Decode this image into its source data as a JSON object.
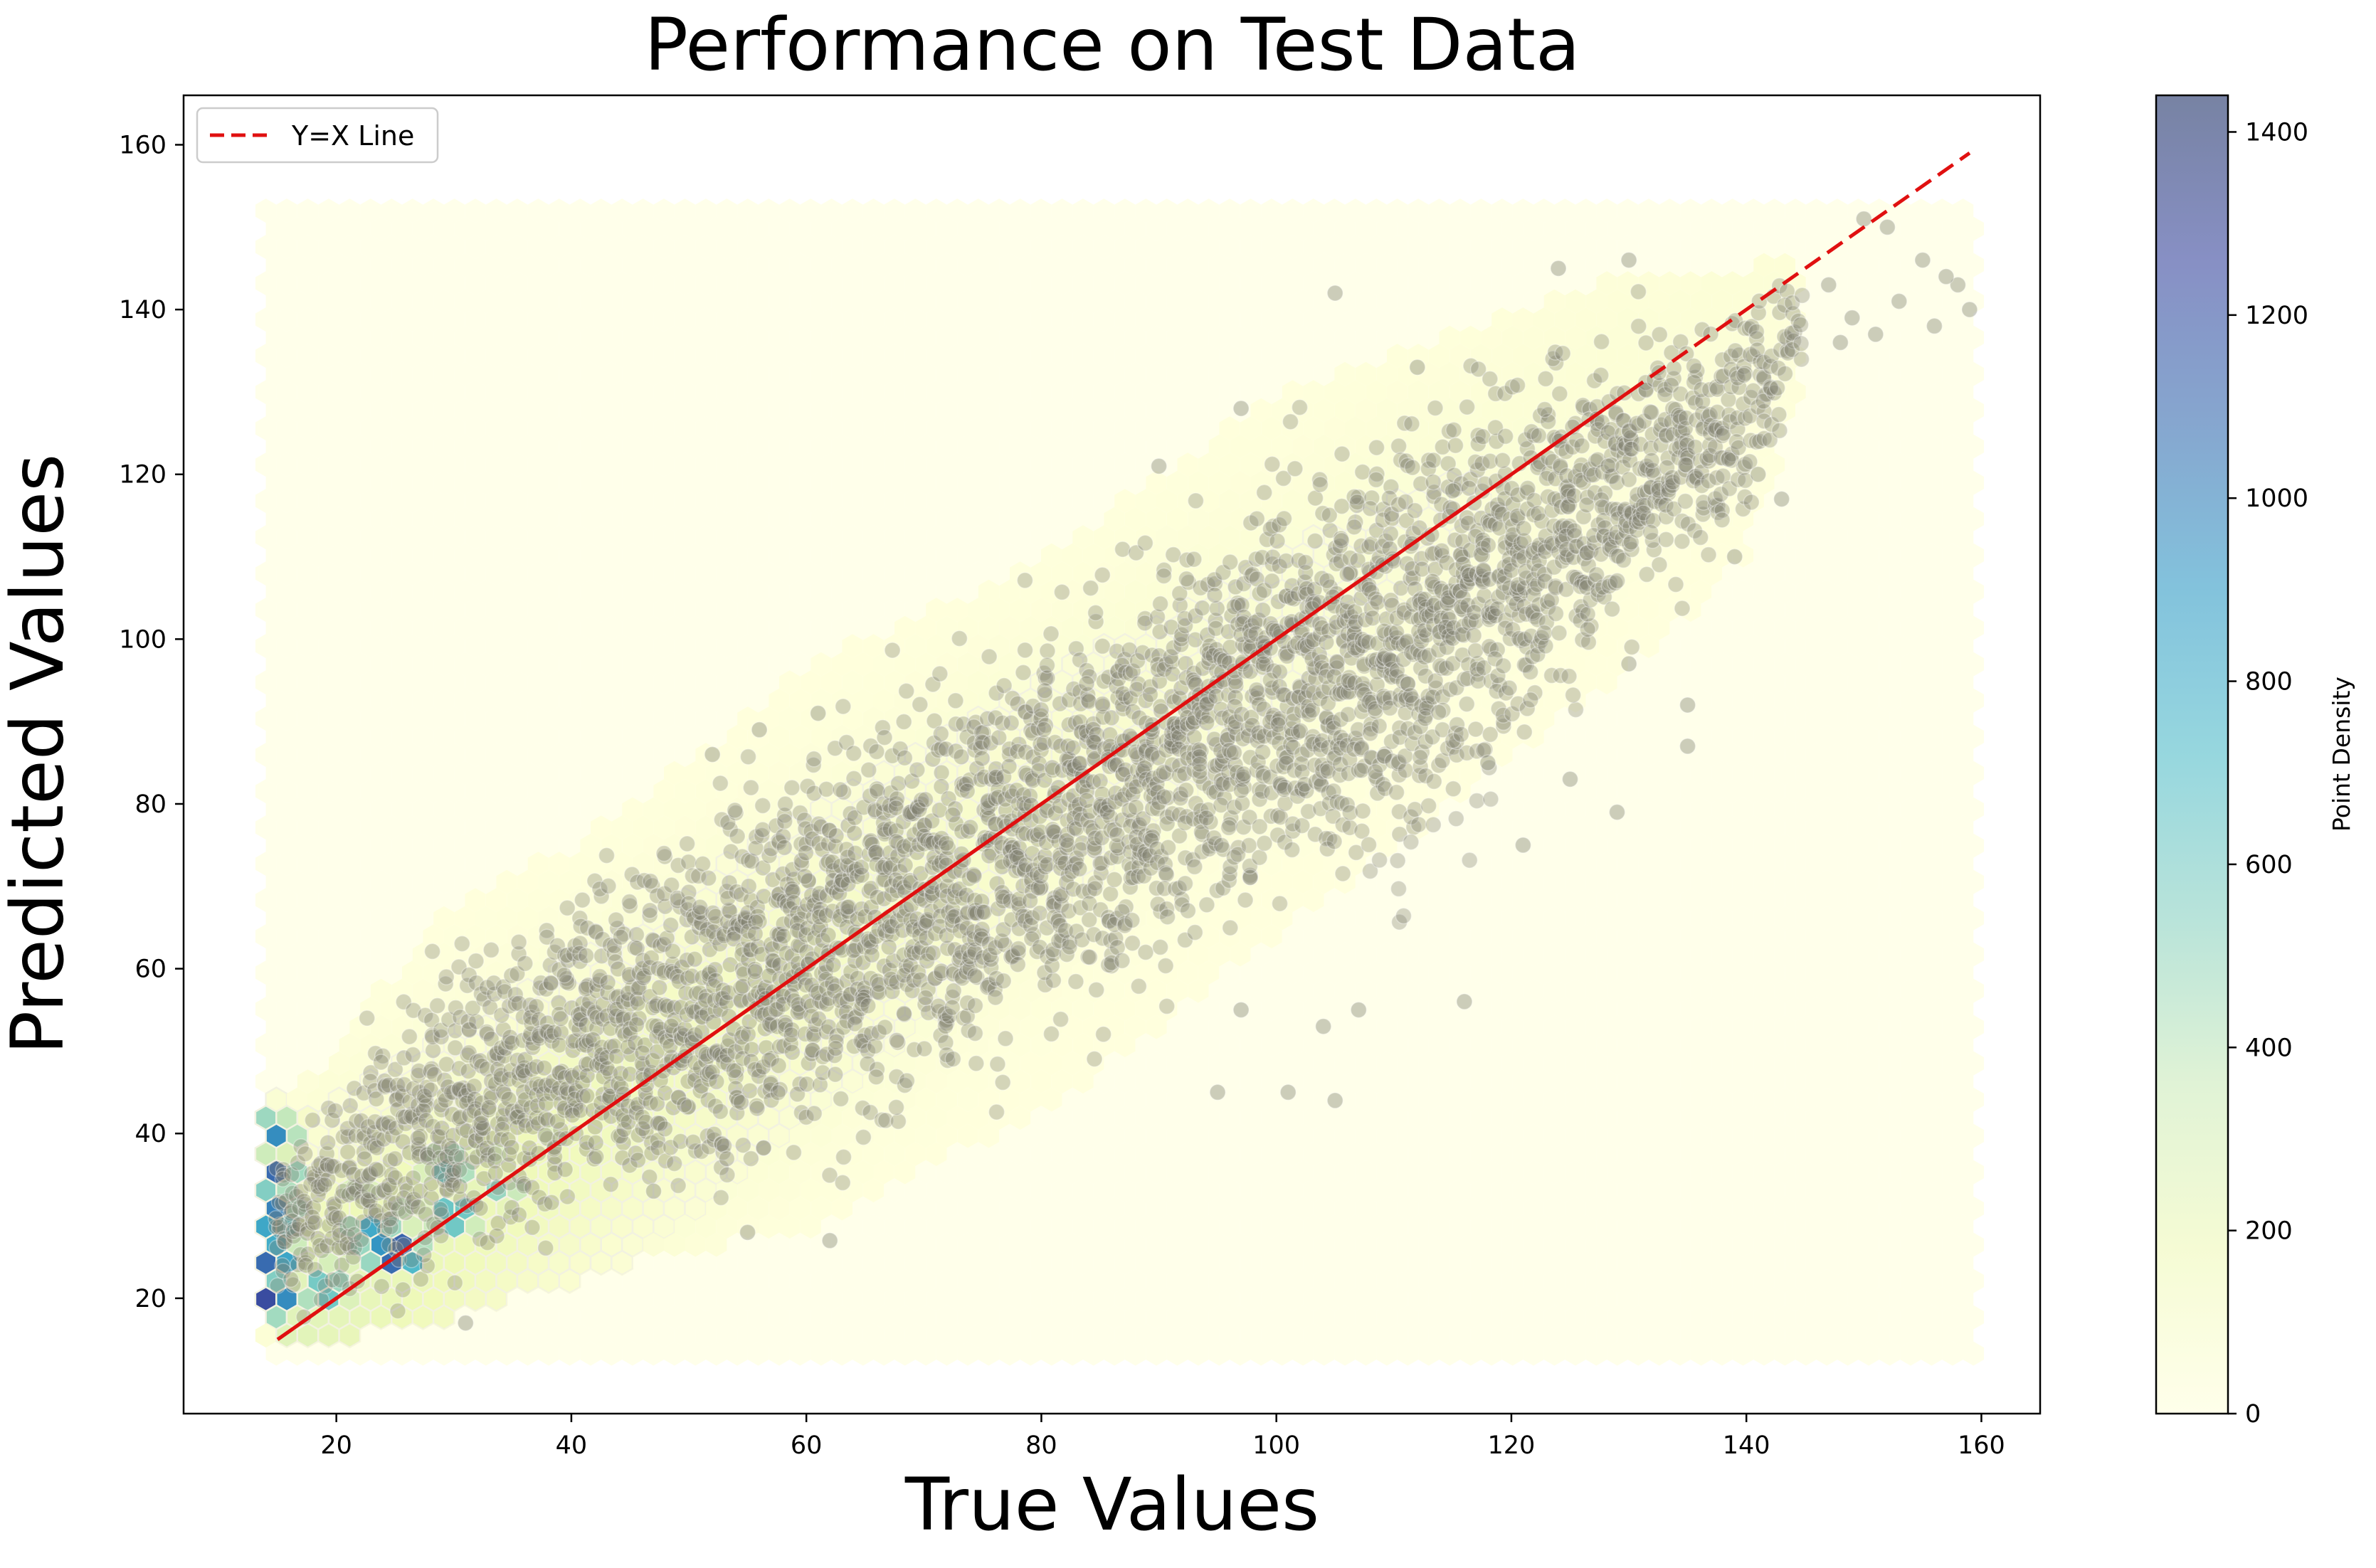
{
  "chart_data": {
    "type": "scatter",
    "subtype": "hexbin density with scatter overlay",
    "title": "Performance on Test Data",
    "xlabel": "True Values",
    "ylabel": "Predicted Values",
    "xlim": [
      7,
      165
    ],
    "ylim": [
      6,
      166
    ],
    "xticks": [
      20,
      40,
      60,
      80,
      100,
      120,
      140,
      160
    ],
    "yticks": [
      20,
      40,
      60,
      80,
      100,
      120,
      140,
      160
    ],
    "grid": false,
    "legend": {
      "placement": "top-left",
      "entries": [
        "Y=X Line"
      ]
    },
    "reference_line": {
      "name": "Y=X Line",
      "style": "dashed",
      "color": "#e01010",
      "x": [
        15,
        159
      ],
      "y": [
        15,
        159
      ]
    },
    "colorbar": {
      "label": "Point Density",
      "min": 0,
      "max": 1440,
      "ticks": [
        0,
        200,
        400,
        600,
        800,
        1000,
        1200,
        1400
      ],
      "colormap": "YlGnBu",
      "colors": [
        "#ffffd9",
        "#edf8b1",
        "#c7e9b4",
        "#7fcdbb",
        "#41b6c4",
        "#1d91c0",
        "#225ea8",
        "#253494",
        "#081d58"
      ]
    },
    "hexbin_extent": {
      "x": [
        14,
        160
      ],
      "y": [
        12,
        152
      ]
    },
    "density_hotspots": [
      {
        "x": 25,
        "y": 25.5,
        "count": 1440
      },
      {
        "x": 23,
        "y": 28,
        "count": 900
      },
      {
        "x": 30,
        "y": 30,
        "count": 850
      },
      {
        "x": 19,
        "y": 21,
        "count": 800
      },
      {
        "x": 29.5,
        "y": 36,
        "count": 700
      },
      {
        "x": 34,
        "y": 33,
        "count": 520
      },
      {
        "x": 14.5,
        "y": 20,
        "count": 1300
      },
      {
        "x": 14.5,
        "y": 25,
        "count": 1250
      },
      {
        "x": 14.5,
        "y": 30,
        "count": 1200
      },
      {
        "x": 14.5,
        "y": 35,
        "count": 1150
      },
      {
        "x": 14.5,
        "y": 40,
        "count": 1000
      },
      {
        "x": 20,
        "y": 23,
        "count": 450
      },
      {
        "x": 26,
        "y": 30,
        "count": 420
      },
      {
        "x": 22,
        "y": 33,
        "count": 320
      },
      {
        "x": 33,
        "y": 38,
        "count": 300
      },
      {
        "x": 38,
        "y": 40,
        "count": 240
      }
    ],
    "scatter_color": "#7f8171",
    "scatter_band": [
      {
        "x": 15,
        "lo": 13,
        "hi": 43
      },
      {
        "x": 20,
        "lo": 15,
        "hi": 50
      },
      {
        "x": 25,
        "lo": 16,
        "hi": 60
      },
      {
        "x": 30,
        "lo": 18,
        "hi": 68
      },
      {
        "x": 40,
        "lo": 22,
        "hi": 75
      },
      {
        "x": 50,
        "lo": 26,
        "hi": 85
      },
      {
        "x": 60,
        "lo": 28,
        "hi": 97
      },
      {
        "x": 70,
        "lo": 36,
        "hi": 103
      },
      {
        "x": 80,
        "lo": 42,
        "hi": 110
      },
      {
        "x": 90,
        "lo": 50,
        "hi": 120
      },
      {
        "x": 100,
        "lo": 60,
        "hi": 130
      },
      {
        "x": 110,
        "lo": 60,
        "hi": 135
      },
      {
        "x": 120,
        "lo": 78,
        "hi": 140
      },
      {
        "x": 130,
        "lo": 95,
        "hi": 145
      },
      {
        "x": 140,
        "lo": 110,
        "hi": 145
      },
      {
        "x": 145,
        "lo": 132,
        "hi": 147
      }
    ],
    "scatter_outliers": [
      {
        "x": 150,
        "y": 151
      },
      {
        "x": 152,
        "y": 150
      },
      {
        "x": 155,
        "y": 146
      },
      {
        "x": 158,
        "y": 143
      },
      {
        "x": 159,
        "y": 140
      },
      {
        "x": 156,
        "y": 138
      },
      {
        "x": 149,
        "y": 139
      },
      {
        "x": 151,
        "y": 137
      },
      {
        "x": 153,
        "y": 141
      },
      {
        "x": 157,
        "y": 144
      },
      {
        "x": 147,
        "y": 143
      },
      {
        "x": 148,
        "y": 136
      },
      {
        "x": 135,
        "y": 87
      },
      {
        "x": 135,
        "y": 92
      },
      {
        "x": 129,
        "y": 79
      },
      {
        "x": 125,
        "y": 83
      },
      {
        "x": 121,
        "y": 75
      },
      {
        "x": 118,
        "y": 85
      },
      {
        "x": 116,
        "y": 56
      },
      {
        "x": 105,
        "y": 44
      },
      {
        "x": 101,
        "y": 45
      },
      {
        "x": 97,
        "y": 55
      },
      {
        "x": 95,
        "y": 45
      },
      {
        "x": 90,
        "y": 121
      },
      {
        "x": 52,
        "y": 86
      },
      {
        "x": 62,
        "y": 27
      },
      {
        "x": 97,
        "y": 128
      },
      {
        "x": 105,
        "y": 142
      },
      {
        "x": 130,
        "y": 146
      },
      {
        "x": 124,
        "y": 145
      },
      {
        "x": 112,
        "y": 133
      },
      {
        "x": 115,
        "y": 118
      },
      {
        "x": 130,
        "y": 97
      },
      {
        "x": 141,
        "y": 120
      },
      {
        "x": 143,
        "y": 117
      },
      {
        "x": 139,
        "y": 110
      },
      {
        "x": 61,
        "y": 91
      },
      {
        "x": 56,
        "y": 89
      },
      {
        "x": 47,
        "y": 33
      },
      {
        "x": 55,
        "y": 28
      },
      {
        "x": 31,
        "y": 17
      },
      {
        "x": 104,
        "y": 53
      },
      {
        "x": 107,
        "y": 55
      }
    ]
  }
}
